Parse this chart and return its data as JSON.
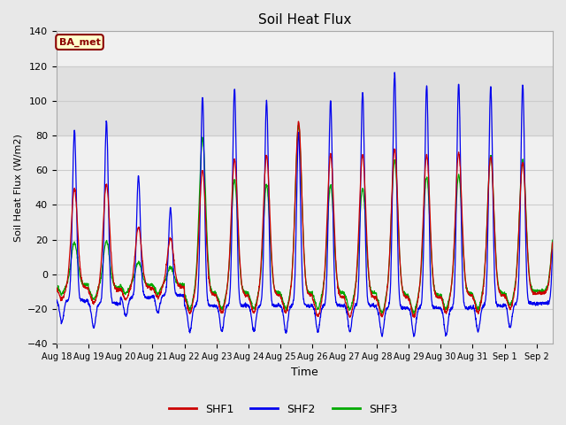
{
  "title": "Soil Heat Flux",
  "ylabel": "Soil Heat Flux (W/m2)",
  "xlabel": "Time",
  "ylim": [
    -40,
    140
  ],
  "fig_bg_color": "#e8e8e8",
  "plot_bg_color": "#f0f0f0",
  "shaded_band_color": "#e0e0e0",
  "grid_color": "#cccccc",
  "legend_label": "BA_met",
  "legend_bg": "#ffffcc",
  "legend_border": "#8B0000",
  "series_colors": [
    "#cc0000",
    "#0000ee",
    "#00aa00"
  ],
  "series_names": [
    "SHF1",
    "SHF2",
    "SHF3"
  ],
  "x_tick_labels": [
    "Aug 18",
    "Aug 19",
    "Aug 20",
    "Aug 21",
    "Aug 22",
    "Aug 23",
    "Aug 24",
    "Aug 25",
    "Aug 26",
    "Aug 27",
    "Aug 28",
    "Aug 29",
    "Aug 30",
    "Aug 31",
    "Sep 1",
    "Sep 2"
  ],
  "shaded_band": [
    80,
    120
  ],
  "n_days": 15
}
